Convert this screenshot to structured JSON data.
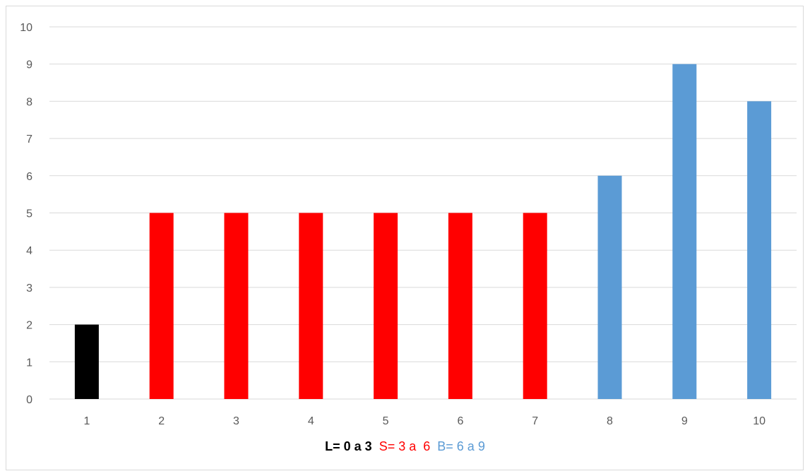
{
  "chart_data": {
    "type": "bar",
    "categories": [
      "1",
      "2",
      "3",
      "4",
      "5",
      "6",
      "7",
      "8",
      "9",
      "10"
    ],
    "values": [
      2,
      5,
      5,
      5,
      5,
      5,
      5,
      6,
      9,
      8
    ],
    "bar_colors": [
      "#000000",
      "#ff0000",
      "#ff0000",
      "#ff0000",
      "#ff0000",
      "#ff0000",
      "#ff0000",
      "#5b9bd5",
      "#5b9bd5",
      "#5b9bd5"
    ],
    "title": "",
    "xlabel": "",
    "ylabel": "",
    "ylim": [
      0,
      10
    ],
    "yticks": [
      0,
      1,
      2,
      3,
      4,
      5,
      6,
      7,
      8,
      9,
      10
    ],
    "grid": true,
    "legend": "none"
  },
  "footnote": {
    "l": "L= 0 a 3",
    "s": "S= 3 a  6",
    "b": "B= 6 a 9"
  },
  "colors": {
    "l": "#000000",
    "s": "#ff0000",
    "b": "#5b9bd5",
    "grid": "#d9d9d9",
    "axis_text": "#595959"
  }
}
